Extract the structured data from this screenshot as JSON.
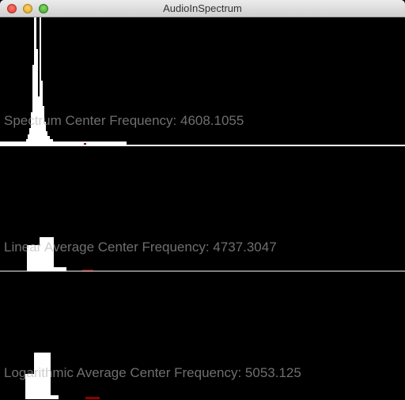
{
  "window": {
    "title": "AudioInSpectrum",
    "buttons": [
      "close",
      "minimize",
      "zoom"
    ]
  },
  "panels": [
    {
      "label": "Spectrum Center Frequency: 4608.1055"
    },
    {
      "label": "Linear Average Center Frequency: 4737.3047"
    },
    {
      "label": "Logarithmic Average Center Frequency: 5053.125"
    }
  ],
  "colors": {
    "background": "#000000",
    "bars": "#ffffff",
    "marker": "#8b0000",
    "label": "#b3b3b3"
  }
}
